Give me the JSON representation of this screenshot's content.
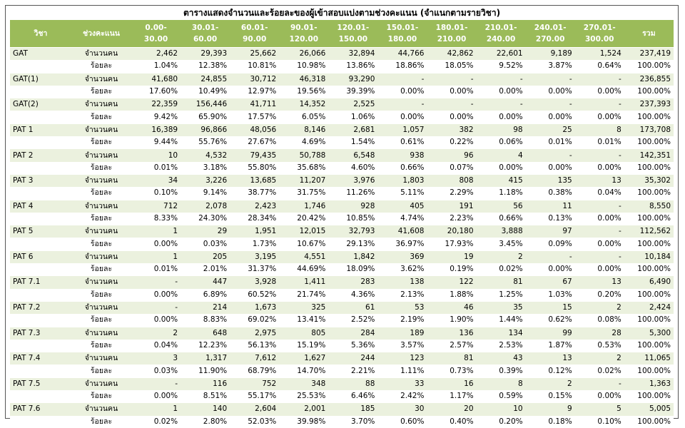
{
  "title": "ตารางแสดงจำนวนและร้อยละของผู้เข้าสอบแบ่งตามช่วงคะแนน (จำแนกตามรายวิชา)",
  "header": [
    [
      "วิชา"
    ],
    [
      "ช่วงคะแนน"
    ],
    [
      "0.00-30.00"
    ],
    [
      "30.01-",
      "60.00"
    ],
    [
      "60.01-",
      "90.00"
    ],
    [
      "90.01-",
      "120.00"
    ],
    [
      "120.01-",
      "150.00"
    ],
    [
      "150.01-",
      "180.00"
    ],
    [
      "180.01-",
      "210.00"
    ],
    [
      "210.01-",
      "240.00"
    ],
    [
      "240.01-",
      "270.00"
    ],
    [
      "270.01-",
      "300.00"
    ],
    [
      "รวม"
    ]
  ],
  "rows": [
    {
      "subject": "GAT",
      "count_label": "จำนวนคน",
      "counts": [
        "2,462",
        "29,393",
        "25,662",
        "26,066",
        "32,894",
        "44,766",
        "42,862",
        "22,601",
        "9,189",
        "1,524",
        "237,419"
      ],
      "percent_label": "ร้อยละ",
      "percents": [
        "1.04%",
        "12.38%",
        "10.81%",
        "10.98%",
        "13.86%",
        "18.86%",
        "18.05%",
        "9.52%",
        "3.87%",
        "0.64%",
        "100.00%"
      ]
    },
    {
      "subject": "GAT(1)",
      "count_label": "จำนวนคน",
      "counts": [
        "41,680",
        "24,855",
        "30,712",
        "46,318",
        "93,290",
        "-",
        "-",
        "-",
        "-",
        "-",
        "236,855"
      ],
      "percent_label": "ร้อยละ",
      "percents": [
        "17.60%",
        "10.49%",
        "12.97%",
        "19.56%",
        "39.39%",
        "0.00%",
        "0.00%",
        "0.00%",
        "0.00%",
        "0.00%",
        "100.00%"
      ]
    },
    {
      "subject": "GAT(2)",
      "count_label": "จำนวนคน",
      "counts": [
        "22,359",
        "156,446",
        "41,711",
        "14,352",
        "2,525",
        "-",
        "-",
        "-",
        "-",
        "-",
        "237,393"
      ],
      "percent_label": "ร้อยละ",
      "percents": [
        "9.42%",
        "65.90%",
        "17.57%",
        "6.05%",
        "1.06%",
        "0.00%",
        "0.00%",
        "0.00%",
        "0.00%",
        "0.00%",
        "100.00%"
      ]
    },
    {
      "subject": "PAT 1",
      "count_label": "จำนวนคน",
      "counts": [
        "16,389",
        "96,866",
        "48,056",
        "8,146",
        "2,681",
        "1,057",
        "382",
        "98",
        "25",
        "8",
        "173,708"
      ],
      "percent_label": "ร้อยละ",
      "percents": [
        "9.44%",
        "55.76%",
        "27.67%",
        "4.69%",
        "1.54%",
        "0.61%",
        "0.22%",
        "0.06%",
        "0.01%",
        "0.01%",
        "100.00%"
      ]
    },
    {
      "subject": "PAT 2",
      "count_label": "จำนวนคน",
      "counts": [
        "10",
        "4,532",
        "79,435",
        "50,788",
        "6,548",
        "938",
        "96",
        "4",
        "-",
        "-",
        "142,351"
      ],
      "percent_label": "ร้อยละ",
      "percents": [
        "0.01%",
        "3.18%",
        "55.80%",
        "35.68%",
        "4.60%",
        "0.66%",
        "0.07%",
        "0.00%",
        "0.00%",
        "0.00%",
        "100.00%"
      ]
    },
    {
      "subject": "PAT 3",
      "count_label": "จำนวนคน",
      "counts": [
        "34",
        "3,226",
        "13,685",
        "11,207",
        "3,976",
        "1,803",
        "808",
        "415",
        "135",
        "13",
        "35,302"
      ],
      "percent_label": "ร้อยละ",
      "percents": [
        "0.10%",
        "9.14%",
        "38.77%",
        "31.75%",
        "11.26%",
        "5.11%",
        "2.29%",
        "1.18%",
        "0.38%",
        "0.04%",
        "100.00%"
      ]
    },
    {
      "subject": "PAT 4",
      "count_label": "จำนวนคน",
      "counts": [
        "712",
        "2,078",
        "2,423",
        "1,746",
        "928",
        "405",
        "191",
        "56",
        "11",
        "-",
        "8,550"
      ],
      "percent_label": "ร้อยละ",
      "percents": [
        "8.33%",
        "24.30%",
        "28.34%",
        "20.42%",
        "10.85%",
        "4.74%",
        "2.23%",
        "0.66%",
        "0.13%",
        "0.00%",
        "100.00%"
      ]
    },
    {
      "subject": "PAT 5",
      "count_label": "จำนวนคน",
      "counts": [
        "1",
        "29",
        "1,951",
        "12,015",
        "32,793",
        "41,608",
        "20,180",
        "3,888",
        "97",
        "-",
        "112,562"
      ],
      "percent_label": "ร้อยละ",
      "percents": [
        "0.00%",
        "0.03%",
        "1.73%",
        "10.67%",
        "29.13%",
        "36.97%",
        "17.93%",
        "3.45%",
        "0.09%",
        "0.00%",
        "100.00%"
      ]
    },
    {
      "subject": "PAT 6",
      "count_label": "จำนวนคน",
      "counts": [
        "1",
        "205",
        "3,195",
        "4,551",
        "1,842",
        "369",
        "19",
        "2",
        "-",
        "-",
        "10,184"
      ],
      "percent_label": "ร้อยละ",
      "percents": [
        "0.01%",
        "2.01%",
        "31.37%",
        "44.69%",
        "18.09%",
        "3.62%",
        "0.19%",
        "0.02%",
        "0.00%",
        "0.00%",
        "100.00%"
      ]
    },
    {
      "subject": "PAT 7.1",
      "count_label": "จำนวนคน",
      "counts": [
        "-",
        "447",
        "3,928",
        "1,411",
        "283",
        "138",
        "122",
        "81",
        "67",
        "13",
        "6,490"
      ],
      "percent_label": "ร้อยละ",
      "percents": [
        "0.00%",
        "6.89%",
        "60.52%",
        "21.74%",
        "4.36%",
        "2.13%",
        "1.88%",
        "1.25%",
        "1.03%",
        "0.20%",
        "100.00%"
      ]
    },
    {
      "subject": "PAT 7.2",
      "count_label": "จำนวนคน",
      "counts": [
        "-",
        "214",
        "1,673",
        "325",
        "61",
        "53",
        "46",
        "35",
        "15",
        "2",
        "2,424"
      ],
      "percent_label": "ร้อยละ",
      "percents": [
        "0.00%",
        "8.83%",
        "69.02%",
        "13.41%",
        "2.52%",
        "2.19%",
        "1.90%",
        "1.44%",
        "0.62%",
        "0.08%",
        "100.00%"
      ]
    },
    {
      "subject": "PAT 7.3",
      "count_label": "จำนวนคน",
      "counts": [
        "2",
        "648",
        "2,975",
        "805",
        "284",
        "189",
        "136",
        "134",
        "99",
        "28",
        "5,300"
      ],
      "percent_label": "ร้อยละ",
      "percents": [
        "0.04%",
        "12.23%",
        "56.13%",
        "15.19%",
        "5.36%",
        "3.57%",
        "2.57%",
        "2.53%",
        "1.87%",
        "0.53%",
        "100.00%"
      ]
    },
    {
      "subject": "PAT 7.4",
      "count_label": "จำนวนคน",
      "counts": [
        "3",
        "1,317",
        "7,612",
        "1,627",
        "244",
        "123",
        "81",
        "43",
        "13",
        "2",
        "11,065"
      ],
      "percent_label": "ร้อยละ",
      "percents": [
        "0.03%",
        "11.90%",
        "68.79%",
        "14.70%",
        "2.21%",
        "1.11%",
        "0.73%",
        "0.39%",
        "0.12%",
        "0.02%",
        "100.00%"
      ]
    },
    {
      "subject": "PAT 7.5",
      "count_label": "จำนวนคน",
      "counts": [
        "-",
        "116",
        "752",
        "348",
        "88",
        "33",
        "16",
        "8",
        "2",
        "-",
        "1,363"
      ],
      "percent_label": "ร้อยละ",
      "percents": [
        "0.00%",
        "8.51%",
        "55.17%",
        "25.53%",
        "6.46%",
        "2.42%",
        "1.17%",
        "0.59%",
        "0.15%",
        "0.00%",
        "100.00%"
      ]
    },
    {
      "subject": "PAT 7.6",
      "count_label": "จำนวนคน",
      "counts": [
        "1",
        "140",
        "2,604",
        "2,001",
        "185",
        "30",
        "20",
        "10",
        "9",
        "5",
        "5,005"
      ],
      "percent_label": "ร้อยละ",
      "percents": [
        "0.02%",
        "2.80%",
        "52.03%",
        "39.98%",
        "3.70%",
        "0.60%",
        "0.40%",
        "0.20%",
        "0.18%",
        "0.10%",
        "100.00%"
      ]
    }
  ]
}
